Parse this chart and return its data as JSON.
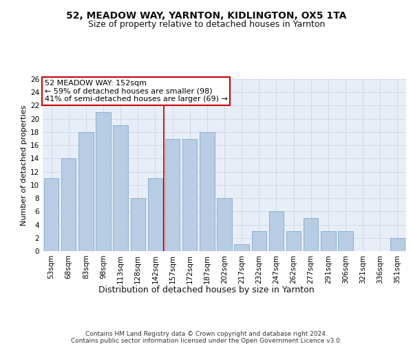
{
  "title1": "52, MEADOW WAY, YARNTON, KIDLINGTON, OX5 1TA",
  "title2": "Size of property relative to detached houses in Yarnton",
  "xlabel": "Distribution of detached houses by size in Yarnton",
  "ylabel": "Number of detached properties",
  "categories": [
    "53sqm",
    "68sqm",
    "83sqm",
    "98sqm",
    "113sqm",
    "128sqm",
    "142sqm",
    "157sqm",
    "172sqm",
    "187sqm",
    "202sqm",
    "217sqm",
    "232sqm",
    "247sqm",
    "262sqm",
    "277sqm",
    "291sqm",
    "306sqm",
    "321sqm",
    "336sqm",
    "351sqm"
  ],
  "values": [
    11,
    14,
    18,
    21,
    19,
    8,
    11,
    17,
    17,
    18,
    8,
    1,
    3,
    6,
    3,
    5,
    3,
    3,
    0,
    0,
    2
  ],
  "bar_color": "#b8cce4",
  "bar_edge_color": "#7faacc",
  "grid_color": "#d0d8e8",
  "background_color": "#e8eef7",
  "fig_background": "#ffffff",
  "vline_x_index": 6.5,
  "vline_color": "#cc0000",
  "annotation_text": "52 MEADOW WAY: 152sqm\n← 59% of detached houses are smaller (98)\n41% of semi-detached houses are larger (69) →",
  "annotation_box_color": "#ffffff",
  "annotation_box_edge": "#cc0000",
  "ylim": [
    0,
    26
  ],
  "yticks": [
    0,
    2,
    4,
    6,
    8,
    10,
    12,
    14,
    16,
    18,
    20,
    22,
    24,
    26
  ],
  "footer_line1": "Contains HM Land Registry data © Crown copyright and database right 2024.",
  "footer_line2": "Contains public sector information licensed under the Open Government Licence v3.0.",
  "title1_fontsize": 10,
  "title2_fontsize": 9,
  "xlabel_fontsize": 9,
  "ylabel_fontsize": 8,
  "tick_fontsize": 7.5,
  "annotation_fontsize": 8,
  "footer_fontsize": 6.5
}
